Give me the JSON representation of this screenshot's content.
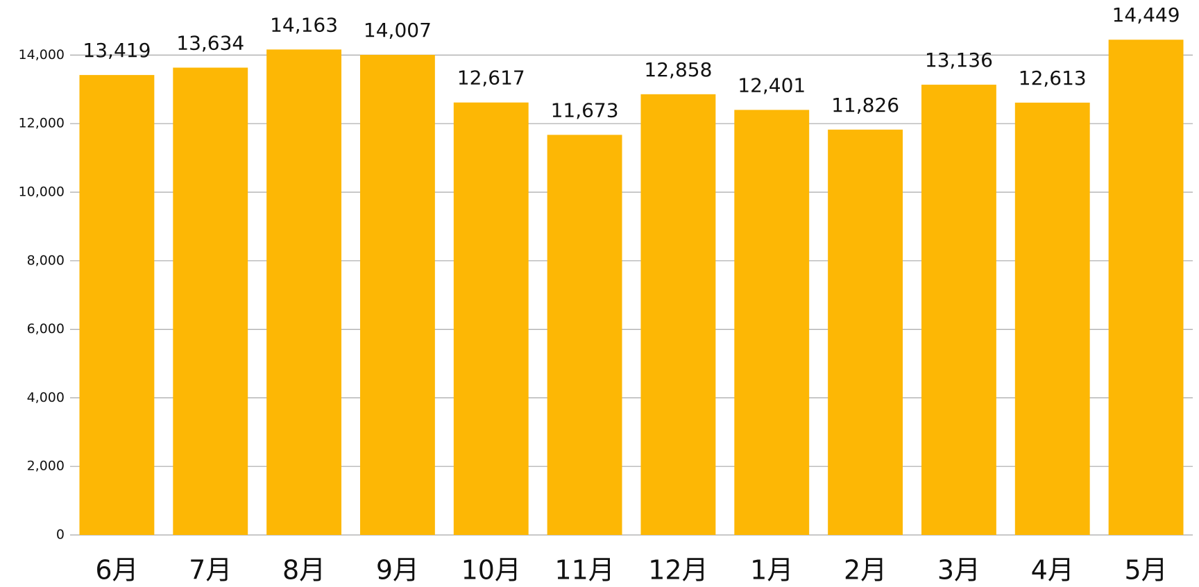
{
  "chart_data": {
    "type": "bar",
    "categories": [
      "6月",
      "7月",
      "8月",
      "9月",
      "10月",
      "11月",
      "12月",
      "1月",
      "2月",
      "3月",
      "4月",
      "5月"
    ],
    "values": [
      13419,
      13634,
      14163,
      14007,
      12617,
      11673,
      12858,
      12401,
      11826,
      13136,
      12613,
      14449
    ],
    "value_labels": [
      "13,419",
      "13,634",
      "14,163",
      "14,007",
      "12,617",
      "11,673",
      "12,858",
      "12,401",
      "11,826",
      "13,136",
      "12,613",
      "14,449"
    ],
    "color": "#fdb705",
    "ylim": [
      0,
      15000
    ],
    "yticks": [
      0,
      {
        "value": 2000,
        "label": "2,000"
      },
      {
        "value": 4000,
        "label": "4,000"
      },
      {
        "value": 6000,
        "label": "6,000"
      },
      {
        "value": 8000,
        "label": "8,000"
      },
      {
        "value": 10000,
        "label": "10,000"
      },
      {
        "value": 12000,
        "label": "12,000"
      },
      {
        "value": 14000,
        "label": "14,000"
      }
    ],
    "grid": true
  }
}
